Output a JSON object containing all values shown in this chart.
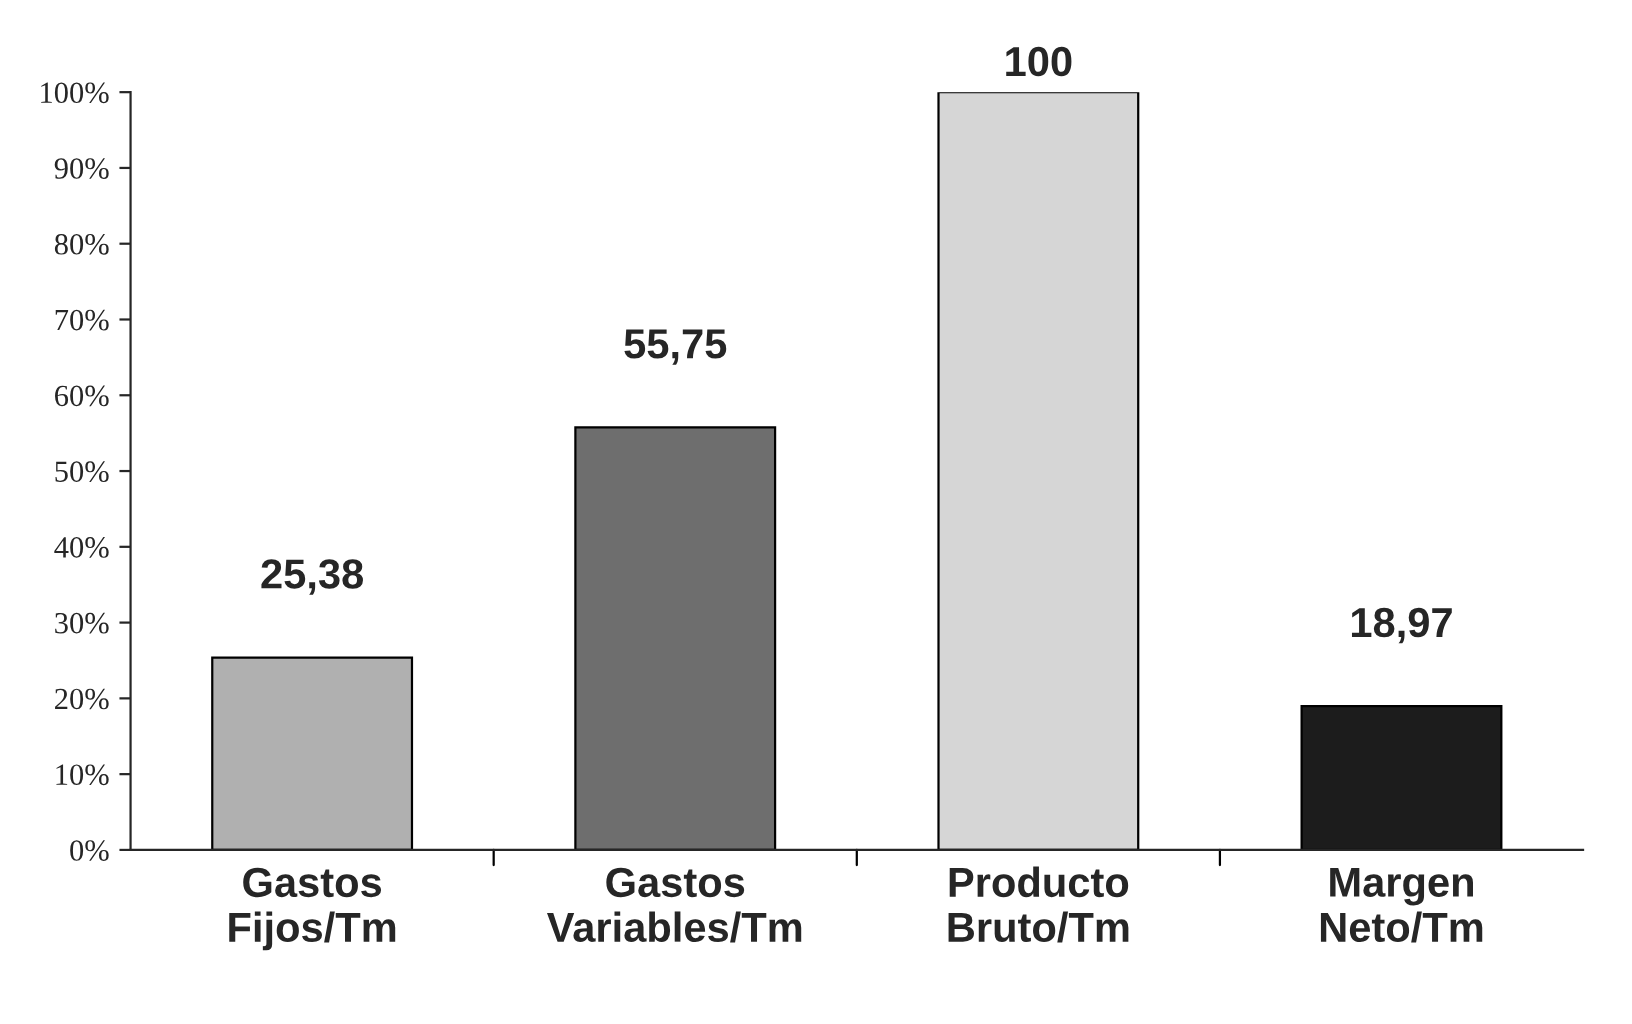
{
  "chart_data": {
    "type": "bar",
    "categories": [
      "Gastos\nFijos/Tm",
      "Gastos\nVariables/Tm",
      "Producto\nBruto/Tm",
      "Margen\nNeto/Tm"
    ],
    "values": [
      25.38,
      55.75,
      100,
      18.97
    ],
    "colors": [
      "#b0b0b0",
      "#6e6e6e",
      "#d6d6d6",
      "#1c1c1c"
    ],
    "value_labels": [
      "25,38",
      "55,75",
      "100",
      "18,97"
    ],
    "ylim": [
      0,
      100
    ],
    "yticks": [
      {
        "value": 0,
        "label": "0%"
      },
      {
        "value": 10,
        "label": "10%"
      },
      {
        "value": 20,
        "label": "20%"
      },
      {
        "value": 30,
        "label": "30%"
      },
      {
        "value": 40,
        "label": "40%"
      },
      {
        "value": 50,
        "label": "50%"
      },
      {
        "value": 60,
        "label": "60%"
      },
      {
        "value": 70,
        "label": "70%"
      },
      {
        "value": 80,
        "label": "80%"
      },
      {
        "value": 90,
        "label": "90%"
      },
      {
        "value": 100,
        "label": "100%"
      }
    ],
    "grid": false,
    "legend": false
  }
}
